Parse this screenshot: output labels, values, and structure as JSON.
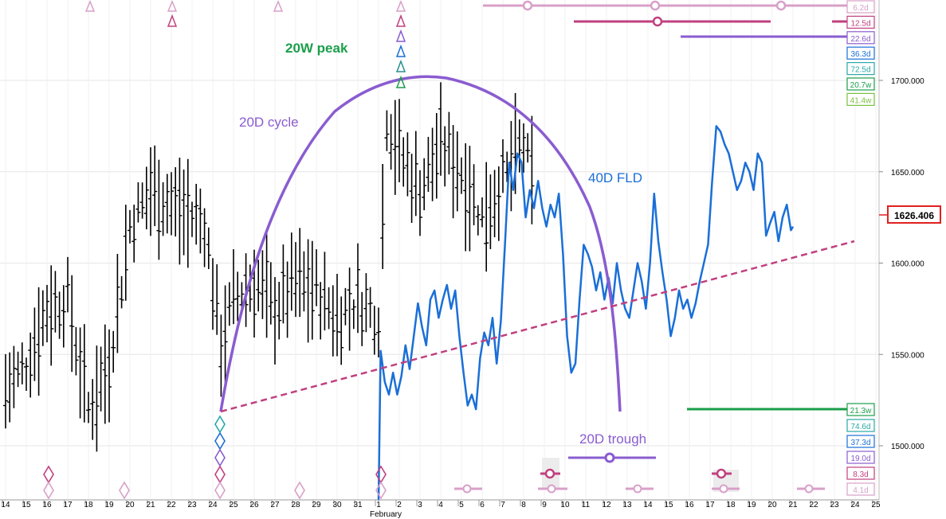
{
  "chart_data": {
    "type": "line",
    "price": {
      "last": "1626.406",
      "axis_ticks": [
        "1700.000",
        "1650.000",
        "1600.000",
        "1550.000",
        "1500.000"
      ],
      "axis_values": [
        1700,
        1650,
        1600,
        1550,
        1500
      ]
    },
    "x_labels": [
      "14",
      "15",
      "16",
      "17",
      "18",
      "19",
      "20",
      "21",
      "22",
      "23",
      "24",
      "25",
      "26",
      "27",
      "28",
      "29",
      "30",
      "31",
      "1",
      "2",
      "3",
      "4",
      "5",
      "6",
      "7",
      "8",
      "9",
      "10",
      "11",
      "12",
      "13",
      "14",
      "15",
      "16",
      "17",
      "18",
      "19",
      "20",
      "21",
      "22",
      "23",
      "24",
      "25"
    ],
    "month_label": "February",
    "annotations": {
      "peak": "20W peak",
      "cycle": "20D cycle",
      "fld": "40D FLD",
      "trough": "20D trough"
    },
    "cycle_labels_top": [
      "6.2d",
      "12.5d",
      "22.6d",
      "36.3d",
      "72.5d",
      "20.7w",
      "41.4w"
    ],
    "cycle_labels_bottom": [
      "21.3w",
      "74.6d",
      "37.3d",
      "19.0d",
      "8.3d",
      "4.1d"
    ],
    "colors": {
      "bars": "#000000",
      "fld": "#1a6fd8",
      "cycle_arc": "#8a5cd0",
      "trendline": "#c0407f",
      "peak_text": "#1a9e4a",
      "last_price_box": "#e02020"
    },
    "fld_series": [
      [
        1,
        1470
      ],
      [
        1.1,
        1552
      ],
      [
        1.3,
        1535
      ],
      [
        1.5,
        1528
      ],
      [
        1.7,
        1540
      ],
      [
        1.9,
        1528
      ],
      [
        2.1,
        1538
      ],
      [
        2.3,
        1555
      ],
      [
        2.5,
        1542
      ],
      [
        2.7,
        1560
      ],
      [
        2.9,
        1578
      ],
      [
        3.1,
        1565
      ],
      [
        3.3,
        1555
      ],
      [
        3.5,
        1580
      ],
      [
        3.7,
        1585
      ],
      [
        3.9,
        1570
      ],
      [
        4.1,
        1580
      ],
      [
        4.3,
        1588
      ],
      [
        4.5,
        1575
      ],
      [
        4.7,
        1585
      ],
      [
        4.9,
        1560
      ],
      [
        5.1,
        1540
      ],
      [
        5.3,
        1522
      ],
      [
        5.5,
        1528
      ],
      [
        5.7,
        1520
      ],
      [
        5.9,
        1548
      ],
      [
        6.1,
        1562
      ],
      [
        6.3,
        1555
      ],
      [
        6.5,
        1570
      ],
      [
        6.7,
        1545
      ],
      [
        6.9,
        1568
      ],
      [
        7.1,
        1610
      ],
      [
        7.3,
        1655
      ],
      [
        7.5,
        1640
      ],
      [
        7.7,
        1660
      ],
      [
        7.9,
        1655
      ],
      [
        8.1,
        1625
      ],
      [
        8.3,
        1640
      ],
      [
        8.5,
        1630
      ],
      [
        8.7,
        1645
      ],
      [
        8.9,
        1630
      ],
      [
        9.1,
        1620
      ],
      [
        9.3,
        1632
      ],
      [
        9.5,
        1625
      ],
      [
        9.7,
        1638
      ],
      [
        9.9,
        1605
      ],
      [
        10.1,
        1560
      ],
      [
        10.3,
        1540
      ],
      [
        10.5,
        1545
      ],
      [
        10.7,
        1580
      ],
      [
        10.9,
        1610
      ],
      [
        11.1,
        1605
      ],
      [
        11.3,
        1598
      ],
      [
        11.5,
        1585
      ],
      [
        11.7,
        1595
      ],
      [
        11.9,
        1580
      ],
      [
        12.1,
        1592
      ],
      [
        12.3,
        1578
      ],
      [
        12.5,
        1600
      ],
      [
        12.7,
        1585
      ],
      [
        12.9,
        1575
      ],
      [
        13.1,
        1570
      ],
      [
        13.3,
        1585
      ],
      [
        13.5,
        1600
      ],
      [
        13.7,
        1590
      ],
      [
        13.9,
        1575
      ],
      [
        14.1,
        1600
      ],
      [
        14.3,
        1638
      ],
      [
        14.5,
        1612
      ],
      [
        14.7,
        1595
      ],
      [
        14.9,
        1580
      ],
      [
        15.1,
        1560
      ],
      [
        15.3,
        1570
      ],
      [
        15.5,
        1585
      ],
      [
        15.7,
        1575
      ],
      [
        15.9,
        1580
      ],
      [
        16.1,
        1570
      ],
      [
        16.3,
        1578
      ],
      [
        16.5,
        1590
      ],
      [
        16.7,
        1600
      ],
      [
        16.9,
        1610
      ],
      [
        17.1,
        1645
      ],
      [
        17.3,
        1675
      ],
      [
        17.5,
        1672
      ],
      [
        17.7,
        1665
      ],
      [
        17.9,
        1660
      ],
      [
        18.1,
        1650
      ],
      [
        18.3,
        1640
      ],
      [
        18.5,
        1645
      ],
      [
        18.7,
        1655
      ],
      [
        18.9,
        1650
      ],
      [
        19.1,
        1640
      ],
      [
        19.3,
        1660
      ],
      [
        19.5,
        1655
      ],
      [
        19.7,
        1615
      ],
      [
        19.9,
        1622
      ],
      [
        20.1,
        1628
      ],
      [
        20.3,
        1612
      ],
      [
        20.5,
        1625
      ],
      [
        20.7,
        1632
      ],
      [
        20.9,
        1618
      ],
      [
        21,
        1620
      ]
    ]
  }
}
